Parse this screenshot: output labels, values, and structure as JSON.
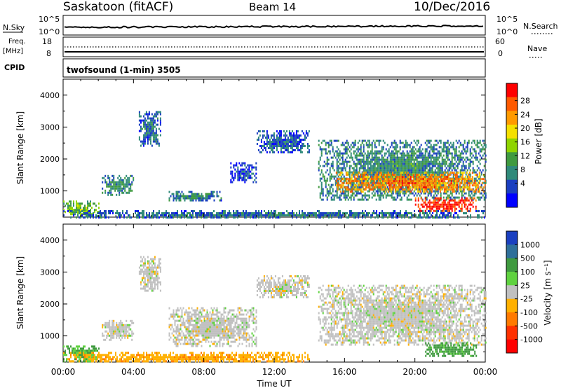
{
  "header": {
    "station": "Saskatoon (fitACF)",
    "beam": "Beam 14",
    "date": "10/Dec/2016"
  },
  "strip_nsky": {
    "left_label": "N.Sky",
    "right_label": "N.Search",
    "left_ticks": [
      "10^5",
      "10^0"
    ],
    "right_ticks": [
      "10^5",
      "10^0"
    ]
  },
  "strip_freq": {
    "left_label_line1": "Freq.",
    "left_label_line2": "[MHz]",
    "right_label": "Nave",
    "left_ticks": [
      "18",
      "8"
    ],
    "right_ticks": [
      "60",
      "0"
    ]
  },
  "strip_cpid": {
    "label": "CPID",
    "program": "twofsound (1-min) 3505"
  },
  "panels": {
    "power": {
      "ylabel": "Slant Range [km]",
      "yticks": [
        "4000",
        "3000",
        "2000",
        "1000"
      ],
      "colorbar_label": "Power [dB]",
      "colorbar_ticks": [
        "28",
        "24",
        "20",
        "16",
        "12",
        "8",
        "4"
      ],
      "colorbar_colors": [
        "#ff0000",
        "#ff5a00",
        "#ff9a00",
        "#f4e000",
        "#8fd400",
        "#3f9a3f",
        "#2f8a7a",
        "#1a3fc0",
        "#0000ff"
      ]
    },
    "velocity": {
      "ylabel": "Slant Range [km]",
      "yticks": [
        "4000",
        "3000",
        "2000",
        "1000"
      ],
      "colorbar_label": "Velocity [m s⁻¹]",
      "colorbar_ticks": [
        "1000",
        "500",
        "100",
        "25",
        "-25",
        "-100",
        "-500",
        "-1000"
      ],
      "colorbar_colors": [
        "#1a3fc0",
        "#2f6f9a",
        "#3f9a3f",
        "#5fd23f",
        "#c0c0c0",
        "#ffb000",
        "#ff7a00",
        "#ff3000",
        "#ff0000"
      ]
    }
  },
  "xaxis": {
    "label": "Time UT",
    "ticks": [
      "00:00",
      "04:00",
      "08:00",
      "12:00",
      "16:00",
      "20:00",
      "00:00"
    ]
  },
  "chart_data": {
    "type": "heatmap",
    "title": "Saskatoon (fitACF)  Beam 14  10/Dec/2016",
    "xlabel": "Time UT",
    "ylabel": "Slant Range [km]",
    "x_range": [
      "00:00",
      "24:00"
    ],
    "ylim": [
      180,
      4500
    ],
    "series": [
      {
        "name": "Power [dB]",
        "clim": [
          0,
          30
        ],
        "echo_regions": [
          {
            "t_start": 0.0,
            "t_end": 2.0,
            "range_low": 200,
            "range_high": 700,
            "value": 14
          },
          {
            "t_start": 2.2,
            "t_end": 4.0,
            "range_low": 900,
            "range_high": 1500,
            "value": 10
          },
          {
            "t_start": 4.3,
            "t_end": 5.5,
            "range_low": 2400,
            "range_high": 3500,
            "value": 8
          },
          {
            "t_start": 6.0,
            "t_end": 9.0,
            "range_low": 700,
            "range_high": 1000,
            "value": 9
          },
          {
            "t_start": 9.5,
            "t_end": 11.0,
            "range_low": 1300,
            "range_high": 1900,
            "value": 6
          },
          {
            "t_start": 11.0,
            "t_end": 14.0,
            "range_low": 2200,
            "range_high": 2900,
            "value": 7
          },
          {
            "t_start": 0.0,
            "t_end": 24.0,
            "range_low": 180,
            "range_high": 400,
            "value": 8
          },
          {
            "t_start": 14.5,
            "t_end": 24.0,
            "range_low": 700,
            "range_high": 2600,
            "value": 10
          },
          {
            "t_start": 15.5,
            "t_end": 24.0,
            "range_low": 1000,
            "range_high": 1600,
            "value": 24
          },
          {
            "t_start": 20.0,
            "t_end": 23.5,
            "range_low": 400,
            "range_high": 800,
            "value": 28
          }
        ]
      },
      {
        "name": "Velocity [m s⁻¹]",
        "clim": [
          -1000,
          1000
        ],
        "echo_regions": [
          {
            "t_start": 0.0,
            "t_end": 2.0,
            "range_low": 200,
            "range_high": 700,
            "value": 100
          },
          {
            "t_start": 2.2,
            "t_end": 4.0,
            "range_low": 900,
            "range_high": 1500,
            "value": 0
          },
          {
            "t_start": 4.3,
            "t_end": 5.5,
            "range_low": 2400,
            "range_high": 3500,
            "value": 0
          },
          {
            "t_start": 6.0,
            "t_end": 11.0,
            "range_low": 700,
            "range_high": 1900,
            "value": 0
          },
          {
            "t_start": 11.0,
            "t_end": 14.0,
            "range_low": 2200,
            "range_high": 2900,
            "value": 0
          },
          {
            "t_start": 0.0,
            "t_end": 14.0,
            "range_low": 180,
            "range_high": 500,
            "value": -80
          },
          {
            "t_start": 14.5,
            "t_end": 24.0,
            "range_low": 700,
            "range_high": 2600,
            "value": 0
          },
          {
            "t_start": 20.5,
            "t_end": 23.5,
            "range_low": 400,
            "range_high": 800,
            "value": 120
          }
        ]
      }
    ]
  }
}
